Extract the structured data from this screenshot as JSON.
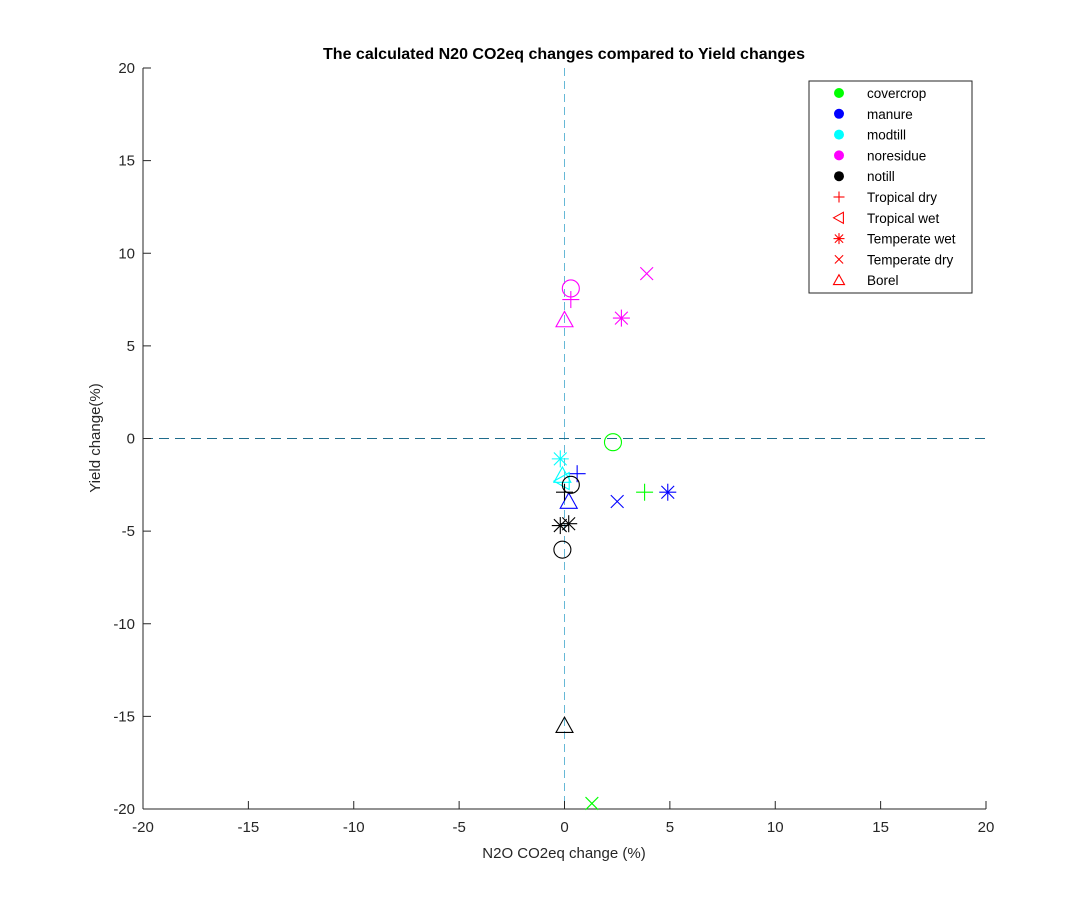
{
  "chart_data": {
    "type": "scatter",
    "title": "The calculated N20 CO2eq changes compared to Yield changes",
    "xlabel": "N2O CO2eq change (%)",
    "ylabel": "Yield change(%)",
    "xlim": [
      -20,
      20
    ],
    "ylim": [
      -20,
      20
    ],
    "xticks": [
      -20,
      -15,
      -10,
      -5,
      0,
      5,
      10,
      15,
      20
    ],
    "yticks": [
      -20,
      -15,
      -10,
      -5,
      0,
      5,
      10,
      15,
      20
    ],
    "grid": false,
    "reference_lines": {
      "x": 0,
      "y": 0,
      "style": "dashed"
    },
    "legend_position": "top-right",
    "legend": [
      {
        "label": "covercrop",
        "marker": "dot",
        "color": "#00ff00"
      },
      {
        "label": "manure",
        "marker": "dot",
        "color": "#0000ff"
      },
      {
        "label": "modtill",
        "marker": "dot",
        "color": "#00ffff"
      },
      {
        "label": "noresidue",
        "marker": "dot",
        "color": "#ff00ff"
      },
      {
        "label": "notill",
        "marker": "dot",
        "color": "#000000"
      },
      {
        "label": "Tropical dry",
        "marker": "plus",
        "color": "#ff0000"
      },
      {
        "label": "Tropical wet",
        "marker": "triangle-left",
        "color": "#ff0000"
      },
      {
        "label": "Temperate wet",
        "marker": "asterisk",
        "color": "#ff0000"
      },
      {
        "label": "Temperate dry",
        "marker": "x",
        "color": "#ff0000"
      },
      {
        "label": "Borel",
        "marker": "triangle-up",
        "color": "#ff0000"
      }
    ],
    "points": [
      {
        "x": 2.3,
        "y": -0.2,
        "marker": "circle",
        "color": "#00ff00"
      },
      {
        "x": 3.8,
        "y": -2.9,
        "marker": "plus",
        "color": "#00ff00"
      },
      {
        "x": 1.3,
        "y": -19.7,
        "marker": "x",
        "color": "#00ff00"
      },
      {
        "x": 0.6,
        "y": -1.9,
        "marker": "plus",
        "color": "#0000ff"
      },
      {
        "x": 4.9,
        "y": -2.9,
        "marker": "asterisk",
        "color": "#0000ff"
      },
      {
        "x": 2.5,
        "y": -3.4,
        "marker": "x",
        "color": "#0000ff"
      },
      {
        "x": 0.2,
        "y": -3.4,
        "marker": "triangle-up",
        "color": "#0000ff"
      },
      {
        "x": -0.2,
        "y": -1.1,
        "marker": "asterisk",
        "color": "#00ffff"
      },
      {
        "x": -0.1,
        "y": -2.0,
        "marker": "triangle-up",
        "color": "#00ffff"
      },
      {
        "x": -0.1,
        "y": -2.3,
        "marker": "triangle-left",
        "color": "#00ffff"
      },
      {
        "x": 0.3,
        "y": 8.1,
        "marker": "circle",
        "color": "#ff00ff"
      },
      {
        "x": 0.3,
        "y": 7.5,
        "marker": "plus",
        "color": "#ff00ff"
      },
      {
        "x": 3.9,
        "y": 8.9,
        "marker": "x",
        "color": "#ff00ff"
      },
      {
        "x": 2.7,
        "y": 6.5,
        "marker": "asterisk",
        "color": "#ff00ff"
      },
      {
        "x": 0.0,
        "y": 6.4,
        "marker": "triangle-up",
        "color": "#ff00ff"
      },
      {
        "x": 0.3,
        "y": -2.5,
        "marker": "circle",
        "color": "#000000"
      },
      {
        "x": 0.0,
        "y": -2.9,
        "marker": "plus",
        "color": "#000000"
      },
      {
        "x": 0.2,
        "y": -4.6,
        "marker": "asterisk",
        "color": "#000000"
      },
      {
        "x": -0.2,
        "y": -4.7,
        "marker": "asterisk",
        "color": "#000000"
      },
      {
        "x": -0.1,
        "y": -6.0,
        "marker": "circle",
        "color": "#000000"
      },
      {
        "x": 0.0,
        "y": -15.5,
        "marker": "triangle-up",
        "color": "#000000"
      }
    ]
  }
}
